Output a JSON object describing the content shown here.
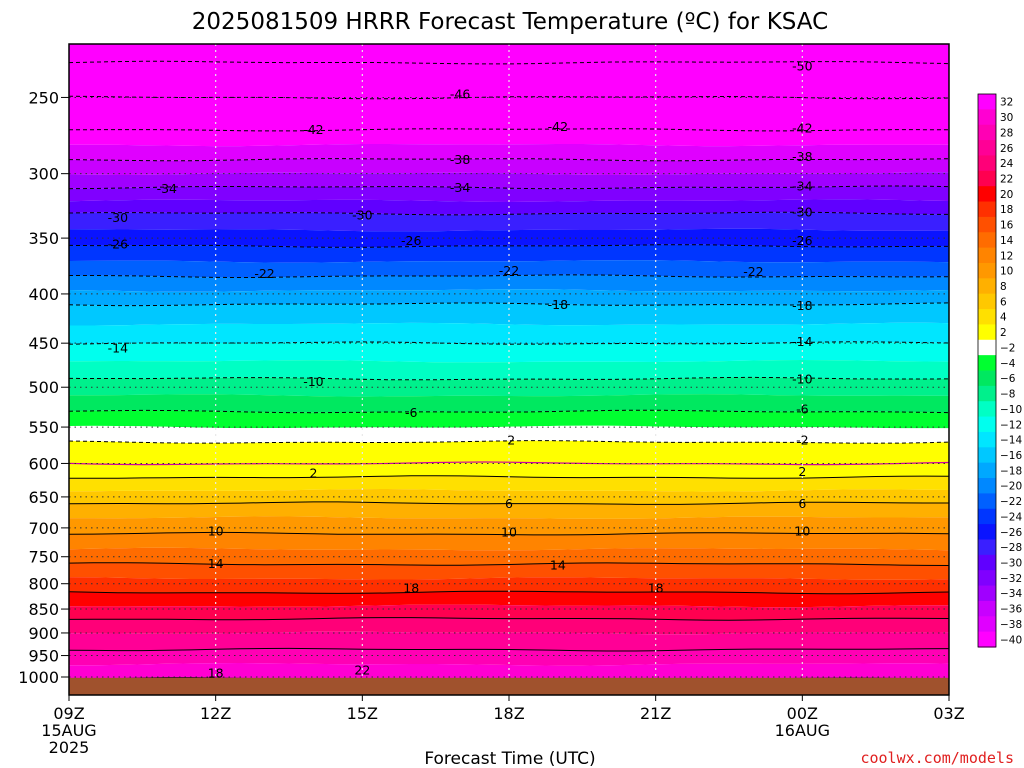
{
  "chart_data": {
    "type": "heatmap",
    "title": "2025081509 HRRR Forecast Temperature (ºC) for KSAC",
    "xlabel": "Forecast Time (UTC)",
    "ylabel": "",
    "y_axis": "pressure (hPa), inverted",
    "xlim": [
      0,
      18
    ],
    "ylim": [
      1000,
      220
    ],
    "x_ticks": [
      {
        "h": 0,
        "label": "09Z",
        "sub1": "15AUG",
        "sub2": "2025"
      },
      {
        "h": 3,
        "label": "12Z",
        "sub1": "",
        "sub2": ""
      },
      {
        "h": 6,
        "label": "15Z",
        "sub1": "",
        "sub2": ""
      },
      {
        "h": 9,
        "label": "18Z",
        "sub1": "",
        "sub2": ""
      },
      {
        "h": 12,
        "label": "21Z",
        "sub1": "",
        "sub2": ""
      },
      {
        "h": 15,
        "label": "00Z",
        "sub1": "16AUG",
        "sub2": ""
      },
      {
        "h": 18,
        "label": "03Z",
        "sub1": "",
        "sub2": ""
      }
    ],
    "y_ticks": [
      {
        "p": 250,
        "label": "250"
      },
      {
        "p": 300,
        "label": "300"
      },
      {
        "p": 350,
        "label": "350"
      },
      {
        "p": 400,
        "label": "400"
      },
      {
        "p": 450,
        "label": "450"
      },
      {
        "p": 500,
        "label": "500"
      },
      {
        "p": 550,
        "label": "550"
      },
      {
        "p": 600,
        "label": "600"
      },
      {
        "p": 650,
        "label": "650"
      },
      {
        "p": 700,
        "label": "700"
      },
      {
        "p": 750,
        "label": "750"
      },
      {
        "p": 800,
        "label": "800"
      },
      {
        "p": 850,
        "label": "850"
      },
      {
        "p": 900,
        "label": "900"
      },
      {
        "p": 950,
        "label": "950"
      },
      {
        "p": 1000,
        "label": "1000"
      }
    ],
    "surface_pressure_hpa": 1002,
    "temperature_profile": {
      "pressure": [
        220,
        250,
        270,
        290,
        310,
        330,
        350,
        370,
        390,
        410,
        430,
        450,
        470,
        490,
        510,
        530,
        550,
        570,
        590,
        610,
        630,
        650,
        670,
        690,
        710,
        730,
        750,
        770,
        790,
        810,
        830,
        850,
        870,
        890,
        910,
        930,
        950,
        970,
        990,
        1005
      ],
      "temp_c": [
        -52,
        -46,
        -42,
        -38,
        -34,
        -30,
        -27,
        -24,
        -21,
        -18,
        -16,
        -14,
        -12,
        -10,
        -8,
        -6,
        -4,
        -2,
        -1,
        1,
        3,
        5,
        7,
        8.5,
        10,
        11.5,
        13,
        14.5,
        16,
        17.5,
        19,
        20.5,
        22,
        23.5,
        24.5,
        25.5,
        27,
        28,
        29,
        30
      ]
    },
    "color_scale": {
      "levels": [
        -40,
        -38,
        -36,
        -34,
        -32,
        -30,
        -28,
        -26,
        -24,
        -22,
        -20,
        -18,
        -16,
        -14,
        -12,
        -10,
        -8,
        -6,
        -4,
        -2,
        2,
        4,
        6,
        8,
        10,
        12,
        14,
        16,
        18,
        20,
        22,
        24,
        26,
        28,
        30,
        32
      ],
      "colors": [
        "#ff00ff",
        "#e000ff",
        "#c800ff",
        "#a000ff",
        "#8000ff",
        "#6000ff",
        "#3a1fff",
        "#0a14ff",
        "#0036ff",
        "#0060ff",
        "#0088ff",
        "#00a8ff",
        "#00c8ff",
        "#00e6ff",
        "#00ffee",
        "#00ffc4",
        "#00f08c",
        "#00e860",
        "#00ff30",
        "#ffffff",
        "#ffff00",
        "#ffe000",
        "#ffc800",
        "#ffb000",
        "#ff9800",
        "#ff8400",
        "#ff6c00",
        "#ff5000",
        "#ff3000",
        "#ff0000",
        "#ff0050",
        "#ff0078",
        "#ff0096",
        "#ff00b4",
        "#ff00d2",
        "#ff00ff"
      ],
      "labels": [
        {
          "v": -40,
          "t": "−40"
        },
        {
          "v": -38,
          "t": "−38"
        },
        {
          "v": -36,
          "t": "−36"
        },
        {
          "v": -34,
          "t": "−34"
        },
        {
          "v": -32,
          "t": "−32"
        },
        {
          "v": -30,
          "t": "−30"
        },
        {
          "v": -28,
          "t": "−28"
        },
        {
          "v": -26,
          "t": "−26"
        },
        {
          "v": -24,
          "t": "−24"
        },
        {
          "v": -22,
          "t": "−22"
        },
        {
          "v": -20,
          "t": "−20"
        },
        {
          "v": -18,
          "t": "−18"
        },
        {
          "v": -16,
          "t": "−16"
        },
        {
          "v": -14,
          "t": "−14"
        },
        {
          "v": -12,
          "t": "−12"
        },
        {
          "v": -10,
          "t": "−10"
        },
        {
          "v": -8,
          "t": "−8"
        },
        {
          "v": -6,
          "t": "−6"
        },
        {
          "v": -4,
          "t": "−4"
        },
        {
          "v": -2,
          "t": "−2"
        },
        {
          "v": 2,
          "t": "2"
        },
        {
          "v": 4,
          "t": "4"
        },
        {
          "v": 6,
          "t": "6"
        },
        {
          "v": 8,
          "t": "8"
        },
        {
          "v": 10,
          "t": "10"
        },
        {
          "v": 12,
          "t": "12"
        },
        {
          "v": 14,
          "t": "14"
        },
        {
          "v": 16,
          "t": "16"
        },
        {
          "v": 18,
          "t": "18"
        },
        {
          "v": 20,
          "t": "20"
        },
        {
          "v": 22,
          "t": "22"
        },
        {
          "v": 24,
          "t": "24"
        },
        {
          "v": 26,
          "t": "26"
        },
        {
          "v": 28,
          "t": "28"
        },
        {
          "v": 30,
          "t": "30"
        },
        {
          "v": 32,
          "t": "32"
        }
      ]
    },
    "contour_labels": [
      {
        "h": 15,
        "p": 232,
        "t": "-50"
      },
      {
        "h": 8,
        "p": 248,
        "t": "-46"
      },
      {
        "h": 5,
        "p": 270,
        "t": "-42"
      },
      {
        "h": 10,
        "p": 268,
        "t": "-42"
      },
      {
        "h": 15,
        "p": 269,
        "t": "-42"
      },
      {
        "h": 8,
        "p": 290,
        "t": "-38"
      },
      {
        "h": 15,
        "p": 288,
        "t": "-38"
      },
      {
        "h": 2,
        "p": 311,
        "t": "-34"
      },
      {
        "h": 8,
        "p": 310,
        "t": "-34"
      },
      {
        "h": 15,
        "p": 309,
        "t": "-34"
      },
      {
        "h": 1,
        "p": 333,
        "t": "-30"
      },
      {
        "h": 6,
        "p": 331,
        "t": "-30"
      },
      {
        "h": 15,
        "p": 329,
        "t": "-30"
      },
      {
        "h": 1,
        "p": 355,
        "t": "-26"
      },
      {
        "h": 7,
        "p": 352,
        "t": "-26"
      },
      {
        "h": 15,
        "p": 352,
        "t": "-26"
      },
      {
        "h": 4,
        "p": 381,
        "t": "-22"
      },
      {
        "h": 9,
        "p": 378,
        "t": "-22"
      },
      {
        "h": 14,
        "p": 379,
        "t": "-22"
      },
      {
        "h": 10,
        "p": 410,
        "t": "-18"
      },
      {
        "h": 15,
        "p": 411,
        "t": "-18"
      },
      {
        "h": 1,
        "p": 455,
        "t": "-14"
      },
      {
        "h": 15,
        "p": 448,
        "t": "-14"
      },
      {
        "h": 5,
        "p": 493,
        "t": "-10"
      },
      {
        "h": 15,
        "p": 490,
        "t": "-10"
      },
      {
        "h": 7,
        "p": 531,
        "t": "-6"
      },
      {
        "h": 15,
        "p": 527,
        "t": "-6"
      },
      {
        "h": 9,
        "p": 567,
        "t": "-2"
      },
      {
        "h": 15,
        "p": 567,
        "t": "-2"
      },
      {
        "h": 5,
        "p": 614,
        "t": "2"
      },
      {
        "h": 15,
        "p": 612,
        "t": "2"
      },
      {
        "h": 9,
        "p": 660,
        "t": "6"
      },
      {
        "h": 15,
        "p": 660,
        "t": "6"
      },
      {
        "h": 3,
        "p": 705,
        "t": "10"
      },
      {
        "h": 9,
        "p": 707,
        "t": "10"
      },
      {
        "h": 15,
        "p": 705,
        "t": "10"
      },
      {
        "h": 3,
        "p": 762,
        "t": "14"
      },
      {
        "h": 10,
        "p": 765,
        "t": "14"
      },
      {
        "h": 7,
        "p": 808,
        "t": "18"
      },
      {
        "h": 12,
        "p": 808,
        "t": "18"
      },
      {
        "h": 3,
        "p": 990,
        "t": "18"
      },
      {
        "h": 6,
        "p": 983,
        "t": "22"
      }
    ],
    "colorbar_position": "right"
  },
  "credit": "coolwx.com/models"
}
